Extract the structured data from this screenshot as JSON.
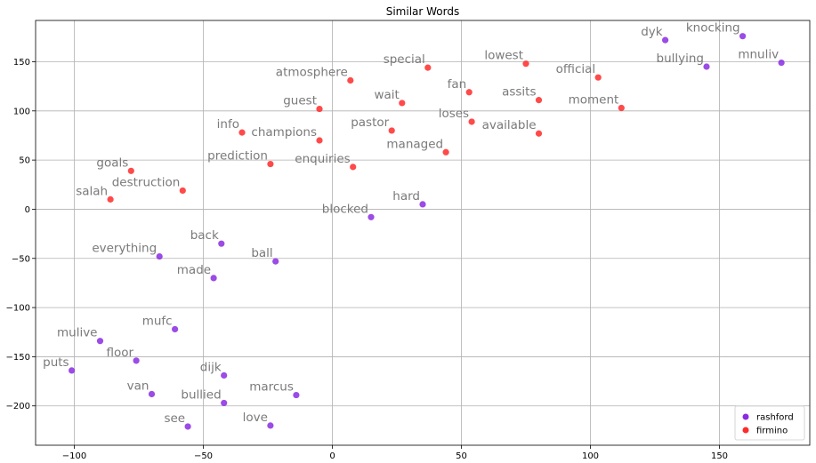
{
  "chart_data": {
    "type": "scatter",
    "title": "Similar Words",
    "xlabel": "",
    "ylabel": "",
    "xlim": [
      -115,
      185
    ],
    "ylim": [
      -240,
      192
    ],
    "xticks": [
      -100,
      -50,
      0,
      50,
      100,
      150
    ],
    "yticks": [
      -200,
      -150,
      -100,
      -50,
      0,
      50,
      100,
      150
    ],
    "xtick_labels": [
      "−100",
      "−50",
      "0",
      "50",
      "100",
      "150"
    ],
    "ytick_labels": [
      "−200",
      "−150",
      "−100",
      "−50",
      "0",
      "50",
      "100",
      "150"
    ],
    "grid": true,
    "legend_position": "bottom-right",
    "series": [
      {
        "name": "rashford",
        "color": "#8a2be2",
        "points": [
          {
            "x": 129,
            "y": 172,
            "label": "dyk"
          },
          {
            "x": 159,
            "y": 176,
            "label": "knocking"
          },
          {
            "x": 145,
            "y": 145,
            "label": "bullying"
          },
          {
            "x": 174,
            "y": 149,
            "label": "mnuliv"
          },
          {
            "x": 35,
            "y": 5,
            "label": "hard"
          },
          {
            "x": 15,
            "y": -8,
            "label": "blocked"
          },
          {
            "x": -43,
            "y": -35,
            "label": "back"
          },
          {
            "x": -67,
            "y": -48,
            "label": "everything"
          },
          {
            "x": -22,
            "y": -53,
            "label": "ball"
          },
          {
            "x": -46,
            "y": -70,
            "label": "made"
          },
          {
            "x": -61,
            "y": -122,
            "label": "mufc"
          },
          {
            "x": -90,
            "y": -134,
            "label": "mulive"
          },
          {
            "x": -76,
            "y": -154,
            "label": "floor"
          },
          {
            "x": -101,
            "y": -164,
            "label": "puts"
          },
          {
            "x": -42,
            "y": -169,
            "label": "dijk"
          },
          {
            "x": -70,
            "y": -188,
            "label": "van"
          },
          {
            "x": -14,
            "y": -189,
            "label": "marcus"
          },
          {
            "x": -42,
            "y": -197,
            "label": "bullied"
          },
          {
            "x": -24,
            "y": -220,
            "label": "love"
          },
          {
            "x": -56,
            "y": -221,
            "label": "see"
          }
        ]
      },
      {
        "name": "firmino",
        "color": "#ff2a2a",
        "points": [
          {
            "x": 37,
            "y": 144,
            "label": "special"
          },
          {
            "x": 75,
            "y": 148,
            "label": "lowest"
          },
          {
            "x": 103,
            "y": 134,
            "label": "official"
          },
          {
            "x": 7,
            "y": 131,
            "label": "atmosphere"
          },
          {
            "x": 53,
            "y": 119,
            "label": "fan"
          },
          {
            "x": 80,
            "y": 111,
            "label": "assits"
          },
          {
            "x": 27,
            "y": 108,
            "label": "wait"
          },
          {
            "x": 112,
            "y": 103,
            "label": "moment"
          },
          {
            "x": -5,
            "y": 102,
            "label": "guest"
          },
          {
            "x": 54,
            "y": 89,
            "label": "loses"
          },
          {
            "x": 23,
            "y": 80,
            "label": "pastor"
          },
          {
            "x": 80,
            "y": 77,
            "label": "available"
          },
          {
            "x": -35,
            "y": 78,
            "label": "info"
          },
          {
            "x": -5,
            "y": 70,
            "label": "champions"
          },
          {
            "x": 44,
            "y": 58,
            "label": "managed"
          },
          {
            "x": -24,
            "y": 46,
            "label": "prediction"
          },
          {
            "x": 8,
            "y": 43,
            "label": "enquiries"
          },
          {
            "x": -78,
            "y": 39,
            "label": "goals"
          },
          {
            "x": -58,
            "y": 19,
            "label": "destruction"
          },
          {
            "x": -86,
            "y": 10,
            "label": "salah"
          }
        ]
      }
    ]
  }
}
